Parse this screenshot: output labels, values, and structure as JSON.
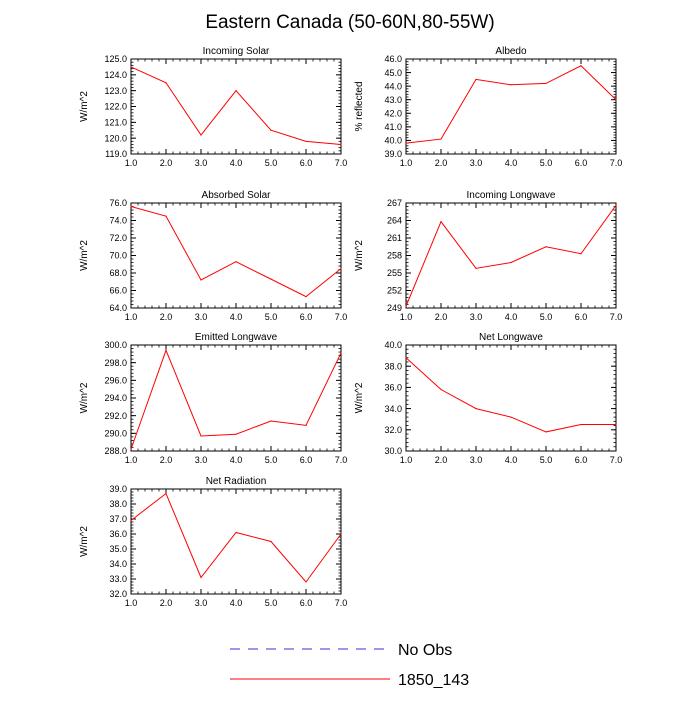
{
  "page": {
    "title": "Eastern Canada (50-60N,80-55W)"
  },
  "legend": {
    "entries": [
      {
        "label": "No Obs",
        "color": "#3333cc",
        "style": "dashed"
      },
      {
        "label": "1850_143",
        "color": "#ff0000",
        "style": "solid"
      }
    ]
  },
  "chart_data": [
    {
      "type": "line",
      "title": "Incoming Solar",
      "ylabel": "W/m^2",
      "xlabel": "",
      "x": [
        1,
        2,
        3,
        4,
        5,
        6,
        7
      ],
      "xlim": [
        1,
        7
      ],
      "xticks": [
        "1.0",
        "2.0",
        "3.0",
        "4.0",
        "5.0",
        "6.0",
        "7.0"
      ],
      "ylim": [
        119,
        125
      ],
      "yticks": [
        "119.0",
        "120.0",
        "121.0",
        "122.0",
        "123.0",
        "124.0",
        "125.0"
      ],
      "series": [
        {
          "name": "1850_143",
          "color": "#ff0000",
          "values": [
            124.5,
            123.5,
            120.2,
            123.0,
            120.5,
            119.8,
            119.6
          ]
        }
      ]
    },
    {
      "type": "line",
      "title": "Albedo",
      "ylabel": "% reflected",
      "xlabel": "",
      "x": [
        1,
        2,
        3,
        4,
        5,
        6,
        7
      ],
      "xlim": [
        1,
        7
      ],
      "xticks": [
        "1.0",
        "2.0",
        "3.0",
        "4.0",
        "5.0",
        "6.0",
        "7.0"
      ],
      "ylim": [
        39,
        46
      ],
      "yticks": [
        "39.0",
        "40.0",
        "41.0",
        "42.0",
        "43.0",
        "44.0",
        "45.0",
        "46.0"
      ],
      "series": [
        {
          "name": "1850_143",
          "color": "#ff0000",
          "values": [
            39.8,
            40.1,
            44.5,
            44.1,
            44.2,
            45.5,
            43.0
          ]
        }
      ]
    },
    {
      "type": "line",
      "title": "Absorbed Solar",
      "ylabel": "W/m^2",
      "xlabel": "",
      "x": [
        1,
        2,
        3,
        4,
        5,
        6,
        7
      ],
      "xlim": [
        1,
        7
      ],
      "xticks": [
        "1.0",
        "2.0",
        "3.0",
        "4.0",
        "5.0",
        "6.0",
        "7.0"
      ],
      "ylim": [
        64,
        76
      ],
      "yticks": [
        "64.0",
        "66.0",
        "68.0",
        "70.0",
        "72.0",
        "74.0",
        "76.0"
      ],
      "series": [
        {
          "name": "1850_143",
          "color": "#ff0000",
          "values": [
            75.6,
            74.5,
            67.2,
            69.3,
            67.3,
            65.3,
            68.5
          ]
        }
      ]
    },
    {
      "type": "line",
      "title": "Incoming Longwave",
      "ylabel": "W/m^2",
      "xlabel": "",
      "x": [
        1,
        2,
        3,
        4,
        5,
        6,
        7
      ],
      "xlim": [
        1,
        7
      ],
      "xticks": [
        "1.0",
        "2.0",
        "3.0",
        "4.0",
        "5.0",
        "6.0",
        "7.0"
      ],
      "ylim": [
        249,
        267
      ],
      "yticks": [
        "249",
        "252",
        "255",
        "258",
        "261",
        "264",
        "267"
      ],
      "series": [
        {
          "name": "1850_143",
          "color": "#ff0000",
          "values": [
            249.3,
            263.8,
            255.8,
            256.8,
            259.5,
            258.3,
            266.6
          ]
        }
      ]
    },
    {
      "type": "line",
      "title": "Emitted Longwave",
      "ylabel": "W/m^2",
      "xlabel": "",
      "x": [
        1,
        2,
        3,
        4,
        5,
        6,
        7
      ],
      "xlim": [
        1,
        7
      ],
      "xticks": [
        "1.0",
        "2.0",
        "3.0",
        "4.0",
        "5.0",
        "6.0",
        "7.0"
      ],
      "ylim": [
        288,
        300
      ],
      "yticks": [
        "288.0",
        "290.0",
        "292.0",
        "294.0",
        "296.0",
        "298.0",
        "300.0"
      ],
      "series": [
        {
          "name": "1850_143",
          "color": "#ff0000",
          "values": [
            288.2,
            299.4,
            289.7,
            289.9,
            291.4,
            290.9,
            299.1
          ]
        }
      ]
    },
    {
      "type": "line",
      "title": "Net Longwave",
      "ylabel": "W/m^2",
      "xlabel": "",
      "x": [
        1,
        2,
        3,
        4,
        5,
        6,
        7
      ],
      "xlim": [
        1,
        7
      ],
      "xticks": [
        "1.0",
        "2.0",
        "3.0",
        "4.0",
        "5.0",
        "6.0",
        "7.0"
      ],
      "ylim": [
        30,
        40
      ],
      "yticks": [
        "30.0",
        "32.0",
        "34.0",
        "36.0",
        "38.0",
        "40.0"
      ],
      "series": [
        {
          "name": "1850_143",
          "color": "#ff0000",
          "values": [
            38.8,
            35.8,
            34.0,
            33.2,
            31.8,
            32.5,
            32.5
          ]
        }
      ]
    },
    {
      "type": "line",
      "title": "Net Radiation",
      "ylabel": "W/m^2",
      "xlabel": "",
      "x": [
        1,
        2,
        3,
        4,
        5,
        6,
        7
      ],
      "xlim": [
        1,
        7
      ],
      "xticks": [
        "1.0",
        "2.0",
        "3.0",
        "4.0",
        "5.0",
        "6.0",
        "7.0"
      ],
      "ylim": [
        32,
        39
      ],
      "yticks": [
        "32.0",
        "33.0",
        "34.0",
        "35.0",
        "36.0",
        "37.0",
        "38.0",
        "39.0"
      ],
      "series": [
        {
          "name": "1850_143",
          "color": "#ff0000",
          "values": [
            36.9,
            38.7,
            33.1,
            36.1,
            35.5,
            32.8,
            36.0
          ]
        }
      ]
    }
  ]
}
